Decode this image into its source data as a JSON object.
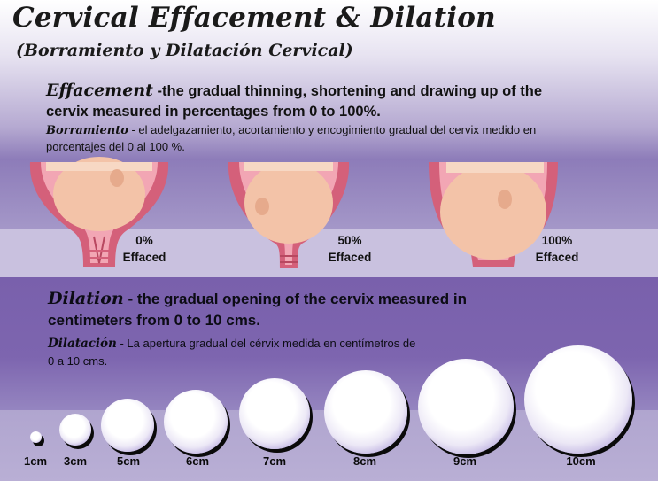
{
  "title": "Cervical Effacement & Dilation",
  "subtitle": "(Borramiento y Dilatación Cervical)",
  "effacement": {
    "term": "Effacement",
    "text": " -the gradual thinning, shortening and drawing up of the cervix measured in percentages from 0 to 100%.",
    "spanish_term": "Borramiento",
    "spanish_text": " - el adelgazamiento, acortamiento y encogimiento gradual del cervix medido en porcentajes del 0 al 100 %.",
    "stages": [
      {
        "percent": "0%",
        "label": "Effaced"
      },
      {
        "percent": "50%",
        "label": "Effaced"
      },
      {
        "percent": "100%",
        "label": "Effaced"
      }
    ]
  },
  "dilation": {
    "term": "Dilation",
    "text": " - the gradual opening of the cervix measured in centimeters from 0 to 10 cms.",
    "spanish_term": "Dilatación",
    "spanish_text": " -  La apertura gradual del cérvix medida en centímetros de 0 a 10 cms.",
    "stages": [
      "1cm",
      "3cm",
      "5cm",
      "6cm",
      "7cm",
      "8cm",
      "9cm",
      "10cm"
    ]
  },
  "colors": {
    "uterus_wall": "#d4607a",
    "uterus_inner": "#f2a6b4",
    "baby_head": "#f3c3a8",
    "accent_purple": "#7960ac"
  }
}
